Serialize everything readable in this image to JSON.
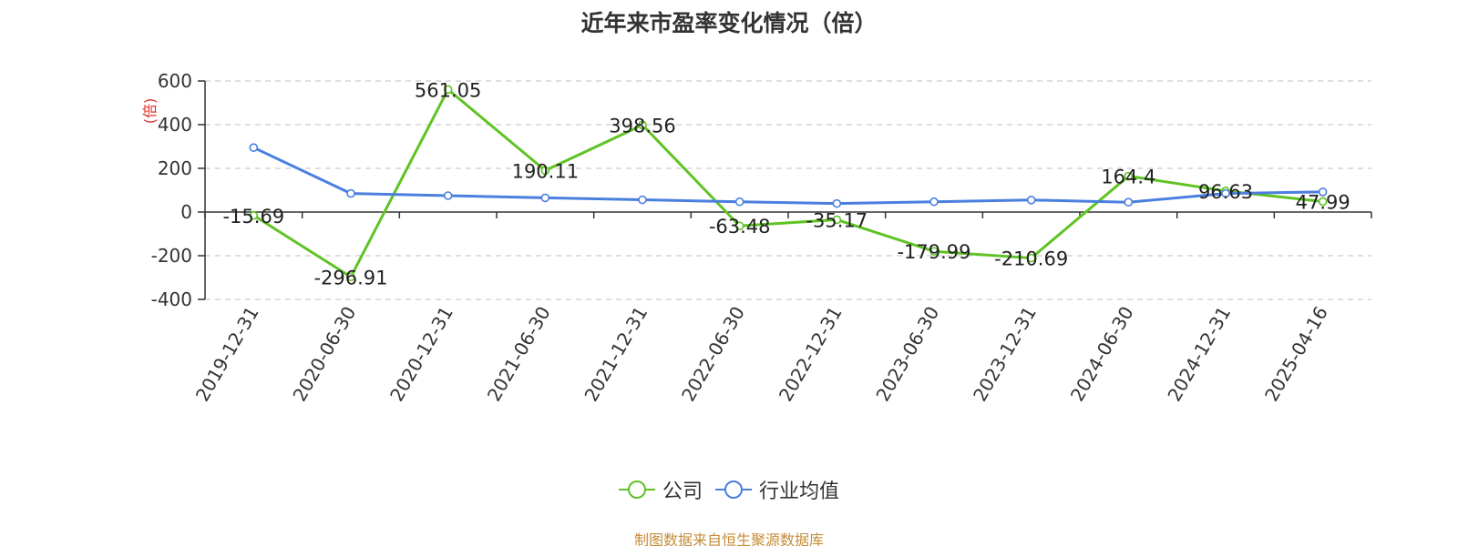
{
  "chart_data": {
    "type": "line",
    "title": "近年来市盈率变化情况（倍）",
    "ylabel": "(倍)",
    "xlabel": "",
    "categories": [
      "2019-12-31",
      "2020-06-30",
      "2020-12-31",
      "2021-06-30",
      "2021-12-31",
      "2022-06-30",
      "2022-12-31",
      "2023-06-30",
      "2023-12-31",
      "2024-06-30",
      "2024-12-31",
      "2025-04-16"
    ],
    "ylim": [
      -400,
      600
    ],
    "yticks": [
      600,
      400,
      200,
      0,
      -200,
      -400
    ],
    "series": [
      {
        "name": "公司",
        "color": "#5fc323",
        "values": [
          -15.69,
          -296.91,
          561.05,
          190.11,
          398.56,
          -63.48,
          -35.17,
          -179.99,
          -210.69,
          164.4,
          96.63,
          47.99
        ],
        "labels": [
          "-15.69",
          "-296.91",
          "561.05",
          "190.11",
          "398.56",
          "-63.48",
          "-35.17",
          "-179.99",
          "-210.69",
          "164.4",
          "96.63",
          "47.99"
        ]
      },
      {
        "name": "行业均值",
        "color": "#4a7fe0",
        "values": [
          295,
          85,
          75,
          65,
          56,
          47,
          39,
          47,
          55,
          45,
          85,
          92
        ]
      }
    ],
    "grid": true,
    "legend_position": "bottom-center"
  },
  "footer": {
    "source": "制图数据来自恒生聚源数据库"
  }
}
